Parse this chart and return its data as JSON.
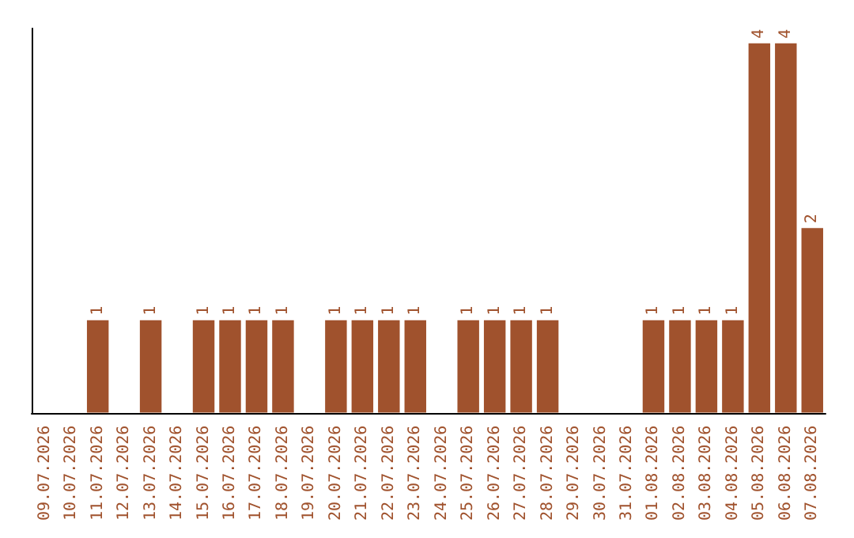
{
  "chart_data": {
    "type": "bar",
    "categories": [
      "09.07.2026",
      "10.07.2026",
      "11.07.2026",
      "12.07.2026",
      "13.07.2026",
      "14.07.2026",
      "15.07.2026",
      "16.07.2026",
      "17.07.2026",
      "18.07.2026",
      "19.07.2026",
      "20.07.2026",
      "21.07.2026",
      "22.07.2026",
      "23.07.2026",
      "24.07.2026",
      "25.07.2026",
      "26.07.2026",
      "27.07.2026",
      "28.07.2026",
      "29.07.2026",
      "30.07.2026",
      "31.07.2026",
      "01.08.2026",
      "02.08.2026",
      "03.08.2026",
      "04.08.2026",
      "05.08.2026",
      "06.08.2026",
      "07.08.2026"
    ],
    "values": [
      0,
      0,
      1,
      0,
      1,
      0,
      1,
      1,
      1,
      1,
      0,
      1,
      1,
      1,
      1,
      0,
      1,
      1,
      1,
      1,
      0,
      0,
      0,
      1,
      1,
      1,
      1,
      4,
      4,
      2
    ],
    "value_labels": [
      null,
      null,
      "1",
      null,
      "1",
      null,
      "1",
      "1",
      "1",
      "1",
      null,
      "1",
      "1",
      "1",
      "1",
      null,
      "1",
      "1",
      "1",
      "1",
      null,
      null,
      null,
      "1",
      "1",
      "1",
      "1",
      "4",
      "4",
      "2"
    ],
    "color": "#a0522d",
    "tick_labels": "x"
  }
}
